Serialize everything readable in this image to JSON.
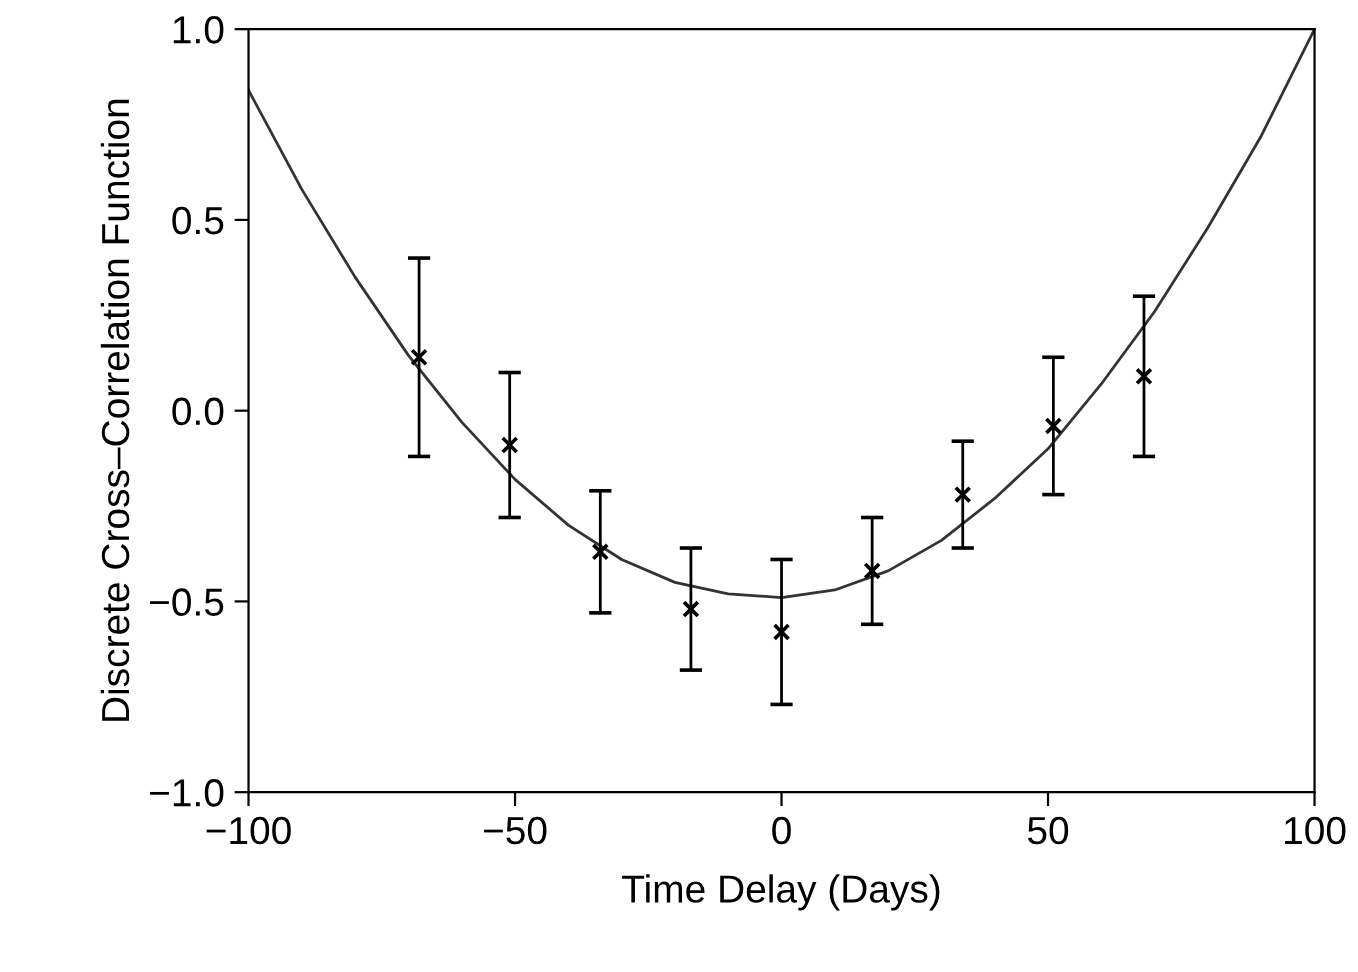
{
  "chart_data": {
    "type": "scatter",
    "xlabel": "Time Delay (Days)",
    "ylabel": "Discrete Cross–Correlation Function",
    "xlim": [
      -100,
      100
    ],
    "ylim": [
      -1.0,
      1.0
    ],
    "xticks": [
      {
        "value": -100,
        "label": "−100"
      },
      {
        "value": -50,
        "label": "−50"
      },
      0,
      50,
      100
    ],
    "yticks": [
      {
        "value": -1.0,
        "label": "−1.0"
      },
      {
        "value": -0.5,
        "label": "−0.5"
      },
      {
        "value": 0.0,
        "label": "0.0"
      },
      {
        "value": 0.5,
        "label": "0.5"
      },
      {
        "value": 1.0,
        "label": "1.0"
      }
    ],
    "grid": false,
    "legend": false,
    "series": [
      {
        "color": "#000000",
        "marker": "cross",
        "x": [
          -68,
          -51,
          -34,
          -17,
          0,
          17,
          34,
          51,
          68
        ],
        "values": [
          0.14,
          -0.09,
          -0.37,
          -0.52,
          -0.58,
          -0.42,
          -0.22,
          -0.04,
          0.09
        ],
        "errors": [
          0.26,
          0.19,
          0.16,
          0.16,
          0.19,
          0.14,
          0.14,
          0.18,
          0.21
        ]
      },
      {
        "type": "line",
        "color": "#333333",
        "line_style": "solid",
        "x": [
          -100,
          -90,
          -80,
          -70,
          -60,
          -50,
          -40,
          -30,
          -20,
          -10,
          0,
          10,
          20,
          30,
          40,
          50,
          60,
          70,
          80,
          90,
          100
        ],
        "values": [
          0.84,
          0.58,
          0.35,
          0.145,
          -0.03,
          -0.18,
          -0.3,
          -0.39,
          -0.45,
          -0.48,
          -0.49,
          -0.47,
          -0.42,
          -0.34,
          -0.23,
          -0.1,
          0.07,
          0.26,
          0.48,
          0.72,
          1.0
        ]
      }
    ]
  }
}
